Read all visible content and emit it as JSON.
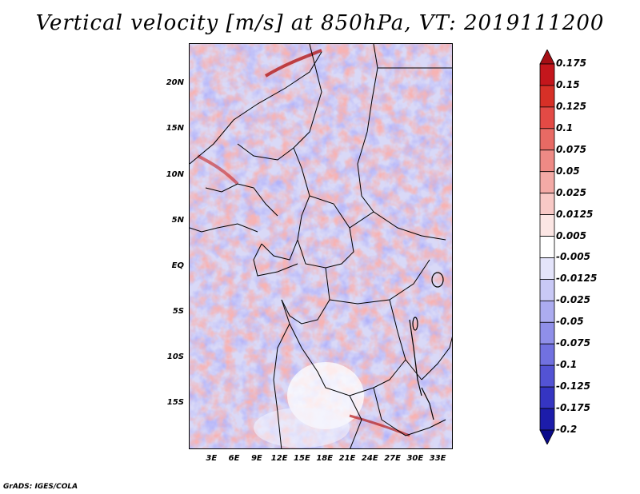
{
  "title": "Vertical velocity [m/s] at 850hPa, VT: 2019111200",
  "footer": "GrADS: IGES/COLA",
  "map": {
    "variable": "Vertical velocity",
    "units": "m/s",
    "level": "850hPa",
    "valid_time": "2019111200",
    "lat_range": [
      -20,
      24.5
    ],
    "lon_range": [
      0,
      35
    ],
    "lat_ticks": [
      "20N",
      "15N",
      "10N",
      "5N",
      "EQ",
      "5S",
      "10S",
      "15S"
    ],
    "lat_values": [
      20,
      15,
      10,
      5,
      0,
      -5,
      -10,
      -15
    ],
    "lon_ticks": [
      "3E",
      "6E",
      "9E",
      "12E",
      "15E",
      "18E",
      "21E",
      "24E",
      "27E",
      "30E",
      "33E"
    ],
    "lon_values": [
      3,
      6,
      9,
      12,
      15,
      18,
      21,
      24,
      27,
      30,
      33
    ]
  },
  "colorbar": {
    "labels": [
      "0.175",
      "0.15",
      "0.125",
      "0.1",
      "0.075",
      "0.05",
      "0.025",
      "0.0125",
      "0.005",
      "-0.005",
      "-0.0125",
      "-0.025",
      "-0.05",
      "-0.075",
      "-0.1",
      "-0.125",
      "-0.175",
      "-0.2"
    ],
    "colors": [
      "#a50f15",
      "#c4161c",
      "#d73027",
      "#e34a45",
      "#e86a64",
      "#ee8a85",
      "#f3aaa6",
      "#f8c9c6",
      "#fce6e4",
      "#ffffff",
      "#e4e4fb",
      "#c9c9f6",
      "#acacf0",
      "#8f8fe9",
      "#7171e0",
      "#5353d4",
      "#3535c2",
      "#1c1caa",
      "#0a0a8a"
    ]
  }
}
